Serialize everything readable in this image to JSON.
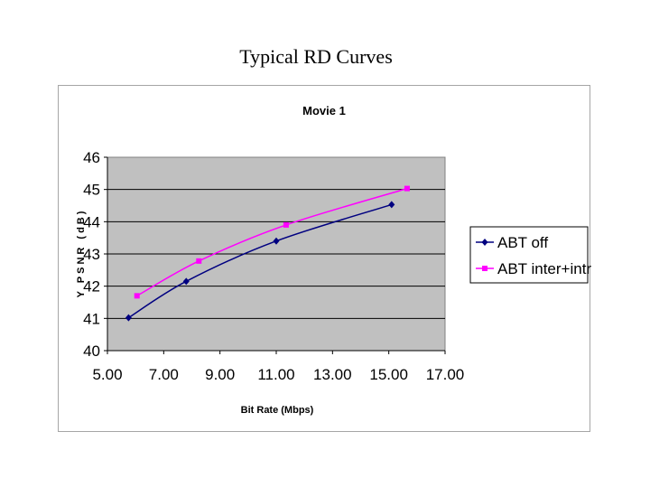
{
  "slide": {
    "title": "Typical RD Curves"
  },
  "chart_data": {
    "type": "line",
    "title": "Movie 1",
    "xlabel": "Bit Rate (Mbps)",
    "ylabel": "Y PSNR (dB)",
    "xlim": [
      5.0,
      17.0
    ],
    "ylim": [
      40,
      46
    ],
    "xticks": [
      "5.00",
      "7.00",
      "9.00",
      "11.00",
      "13.00",
      "15.00",
      "17.00"
    ],
    "yticks": [
      "40",
      "41",
      "42",
      "43",
      "44",
      "45",
      "46"
    ],
    "grid": true,
    "legend_position": "right",
    "plot_background": "#c0c0c0",
    "series": [
      {
        "name": "ABT off",
        "color": "#000080",
        "marker": "diamond",
        "x": [
          5.75,
          7.8,
          11.0,
          15.1
        ],
        "y": [
          41.02,
          42.15,
          43.4,
          44.53
        ]
      },
      {
        "name": "ABT inter+intra",
        "color": "#ff00ff",
        "marker": "square",
        "x": [
          6.05,
          8.25,
          11.35,
          15.65
        ],
        "y": [
          41.7,
          42.78,
          43.9,
          45.03
        ]
      }
    ]
  }
}
